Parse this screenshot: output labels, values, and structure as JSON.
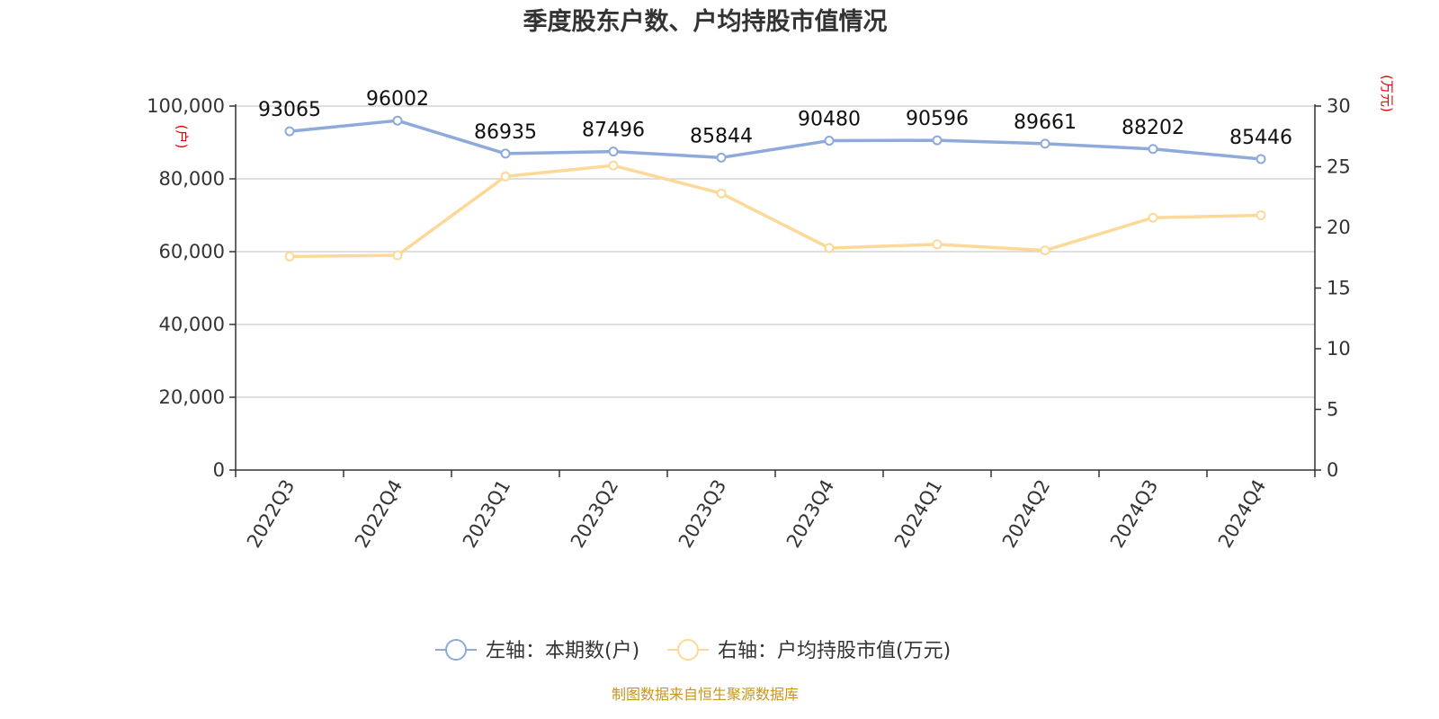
{
  "title": "季度股东户数、户均持股市值情况",
  "source": "制图数据来自恒生聚源数据库",
  "colors": {
    "left_series": "#8eaadb",
    "right_series": "#fcd998",
    "unit_label": "#e60000",
    "source": "#c8951a",
    "grid": "#cccccc",
    "axis": "#333333"
  },
  "chart_data": {
    "type": "line",
    "title": "季度股东户数、户均持股市值情况",
    "categories": [
      "2022Q3",
      "2022Q4",
      "2023Q1",
      "2023Q2",
      "2023Q3",
      "2023Q4",
      "2024Q1",
      "2024Q2",
      "2024Q3",
      "2024Q4"
    ],
    "y_left": {
      "unit": "(户)",
      "range": [
        0,
        100000
      ],
      "ticks": [
        0,
        20000,
        40000,
        60000,
        80000,
        100000
      ],
      "tick_labels": [
        "0",
        "20,000",
        "40,000",
        "60,000",
        "80,000",
        "100,000"
      ]
    },
    "y_right": {
      "unit": "(万元)",
      "range": [
        0,
        30
      ],
      "ticks": [
        0,
        5,
        10,
        15,
        20,
        25,
        30
      ],
      "tick_labels": [
        "0",
        "5",
        "10",
        "15",
        "20",
        "25",
        "30"
      ]
    },
    "series": [
      {
        "name": "左轴：本期数(户)",
        "axis": "left",
        "values": [
          93065,
          96002,
          86935,
          87496,
          85844,
          90480,
          90596,
          89661,
          88202,
          85446
        ],
        "labels": [
          "93065",
          "96002",
          "86935",
          "87496",
          "85844",
          "90480",
          "90596",
          "89661",
          "88202",
          "85446"
        ]
      },
      {
        "name": "右轴：户均持股市值(万元)",
        "axis": "right",
        "values": [
          17.6,
          17.7,
          24.2,
          25.1,
          22.8,
          18.3,
          18.6,
          18.1,
          20.8,
          21.0
        ]
      }
    ],
    "grid": true,
    "legend_position": "bottom-center"
  }
}
